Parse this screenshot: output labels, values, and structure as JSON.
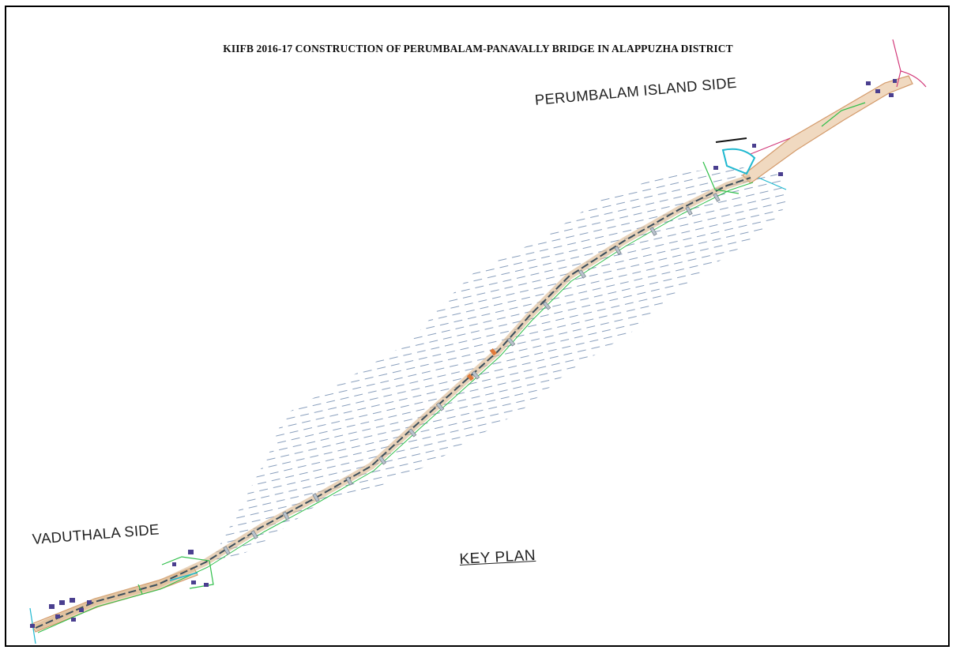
{
  "title": "KIIFB 2016-17 CONSTRUCTION OF PERUMBALAM-PANAVALLY BRIDGE IN ALAPPUZHA DISTRICT",
  "labels": {
    "north_side": "PERUMBALAM ISLAND SIDE",
    "south_side": "VADUTHALA SIDE",
    "plan_name": "KEY PLAN"
  },
  "colors": {
    "water_hatch": "#7a93b5",
    "road_corridor": "#d39a6a",
    "bridge_deck": "#3b4f5c",
    "green_lines": "#2fbf4a",
    "magenta_lines": "#d23a7a",
    "cyan_lines": "#1fb8d0",
    "buildings": "#4a3f8f",
    "pier_blocks": "#e07a3a"
  }
}
